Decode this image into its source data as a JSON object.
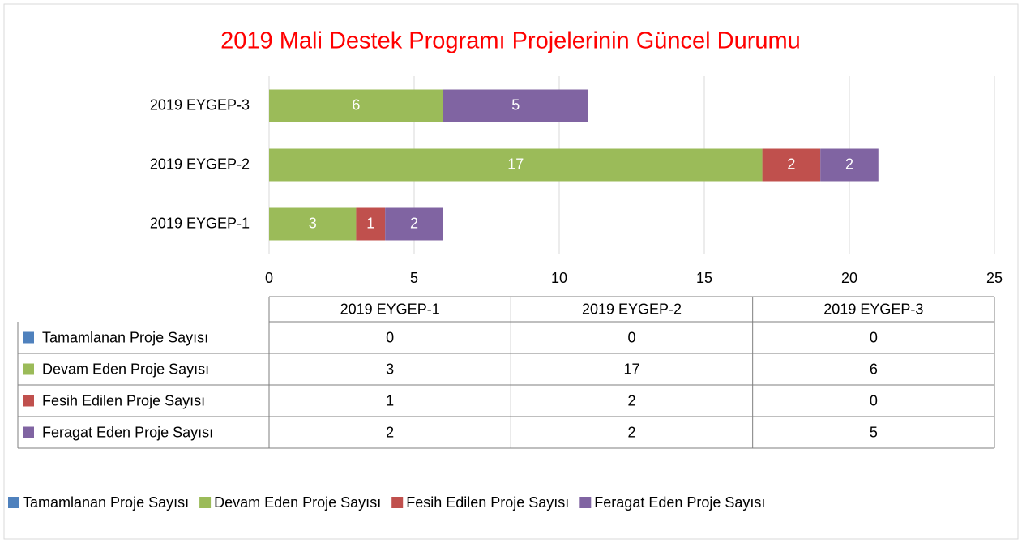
{
  "chart_data": {
    "type": "stacked-bar-horizontal",
    "title": "2019 Mali Destek Programı Projelerinin Güncel Durumu",
    "categories": [
      "2019 EYGEP-1",
      "2019 EYGEP-2",
      "2019 EYGEP-3"
    ],
    "series": [
      {
        "name": "Tamamlanan Proje Sayısı",
        "color": "#4f81bd",
        "values": [
          0,
          0,
          0
        ]
      },
      {
        "name": "Devam Eden Proje Sayısı",
        "color": "#9bbb59",
        "values": [
          3,
          17,
          6
        ]
      },
      {
        "name": "Fesih Edilen Proje Sayısı",
        "color": "#c0504d",
        "values": [
          1,
          2,
          0
        ]
      },
      {
        "name": "Feragat Eden Proje Sayısı",
        "color": "#8064a2",
        "values": [
          2,
          2,
          5
        ]
      }
    ],
    "xlim": [
      0,
      25
    ],
    "xticks": [
      0,
      5,
      10,
      15,
      20,
      25
    ],
    "grid": true,
    "legend": "bottom",
    "data_table": true
  }
}
